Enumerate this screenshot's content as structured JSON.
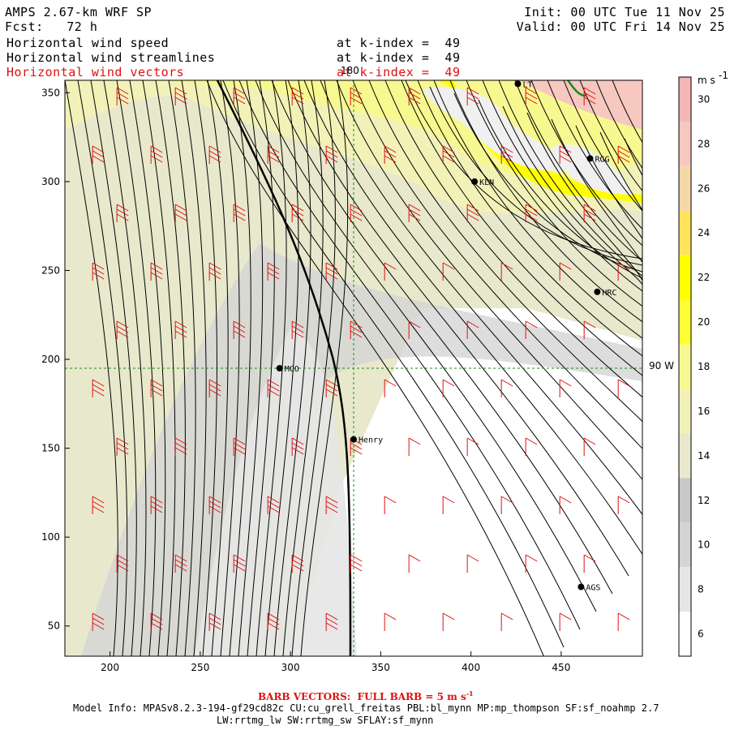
{
  "header": {
    "model": "AMPS 2.67-km WRF SP",
    "fcst": "Fcst:   72 h",
    "init": "Init: 00 UTC Tue 11 Nov 25",
    "valid": "Valid: 00 UTC Fri 14 Nov 25",
    "fields": [
      {
        "name": "Horizontal wind speed",
        "level": "at k-index =  49",
        "color": "#000000"
      },
      {
        "name": "Horizontal wind streamlines",
        "level": "at k-index =  49",
        "color": "#000000"
      },
      {
        "name": "Horizontal wind vectors",
        "level": "at k-index =  49",
        "color": "#e01010"
      }
    ]
  },
  "footer": {
    "barb_note": "BARB VECTORS:  FULL BARB = 5 m s",
    "barb_exp": "-1",
    "model_info": "Model Info: MPASv8.2.3-194-gf29cd82c CU:cu_grell_freitas PBL:bl_mynn MP:mp_thompson SF:sf_noahmp 2.7",
    "model_info2": "LW:rrtmg_lw SW:rrtmg_sw SFLAY:sf_mynn"
  },
  "chart_data": {
    "type": "heatmap",
    "x_ticks": [
      200,
      250,
      300,
      350,
      400,
      450
    ],
    "y_ticks": [
      50,
      100,
      150,
      200,
      250,
      300,
      350
    ],
    "xlim": [
      175,
      495
    ],
    "ylim": [
      33,
      357
    ],
    "colorbar": {
      "unit": "m s",
      "unit_exp": "-1",
      "levels": [
        5,
        7,
        9,
        11,
        13,
        15,
        17,
        19,
        21,
        23,
        25,
        27,
        29,
        31
      ],
      "labels": [
        6,
        8,
        10,
        12,
        14,
        16,
        18,
        20,
        22,
        24,
        26,
        28,
        30
      ],
      "colors": [
        "#ffffff",
        "#e6e6e6",
        "#d4d4d4",
        "#c8c8c8",
        "#e8e8cc",
        "#f2f2b8",
        "#f8f890",
        "#ffff33",
        "#ffff00",
        "#ffe35a",
        "#f5d8a8",
        "#f6c8c0",
        "#f4b6b6"
      ]
    },
    "grid_labels": {
      "lon": "180",
      "lat": "90 W"
    },
    "grid_lines": {
      "x": 335,
      "y": 195
    },
    "stations": [
      {
        "id": "MCO",
        "x": 294,
        "y": 195
      },
      {
        "id": "Henry",
        "x": 335,
        "y": 155
      },
      {
        "id": "KLN",
        "x": 402,
        "y": 300
      },
      {
        "id": "RGG",
        "x": 466,
        "y": 313
      },
      {
        "id": "HRC",
        "x": 470,
        "y": 238
      },
      {
        "id": "AGS",
        "x": 461,
        "y": 72
      },
      {
        "id": "LT",
        "x": 426,
        "y": 355
      }
    ]
  }
}
